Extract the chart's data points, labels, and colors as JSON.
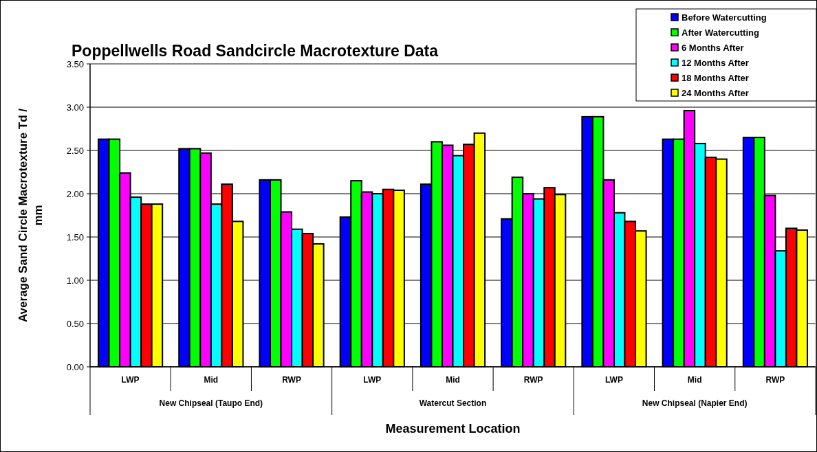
{
  "chart_data": {
    "type": "bar",
    "title": "Poppellwells Road Sandcircle Macrotexture Data",
    "xlabel": "Measurement Location",
    "ylabel": "Average Sand Circle Macrotexture Td / mm",
    "categories": [
      "LWP",
      "Mid",
      "RWP",
      "LWP",
      "Mid",
      "RWP",
      "LWP",
      "Mid",
      "RWP"
    ],
    "annotations": [
      "New Chipseal (Taupo End)",
      "Watercut Section",
      "New Chipseal (Napier End)"
    ],
    "series": [
      {
        "name": "Before Watercutting",
        "color": "#0000ff",
        "values": [
          2.63,
          2.52,
          2.16,
          1.73,
          2.11,
          1.71,
          2.89,
          2.63,
          2.65
        ]
      },
      {
        "name": "After Watercutting",
        "color": "#00ff00",
        "values": [
          2.63,
          2.52,
          2.16,
          2.15,
          2.6,
          2.19,
          2.89,
          2.63,
          2.65
        ]
      },
      {
        "name": "6 Months After",
        "color": "#ff00ff",
        "values": [
          2.24,
          2.47,
          1.79,
          2.02,
          2.56,
          2.0,
          2.16,
          2.96,
          1.98
        ]
      },
      {
        "name": "12 Months After",
        "color": "#00ffff",
        "values": [
          1.96,
          1.88,
          1.59,
          2.0,
          2.44,
          1.94,
          1.78,
          2.58,
          1.34
        ]
      },
      {
        "name": "18 Months After",
        "color": "#ff0000",
        "values": [
          1.88,
          2.11,
          1.54,
          2.05,
          2.57,
          2.07,
          1.68,
          2.42,
          1.6
        ]
      },
      {
        "name": "24 Months After",
        "color": "#ffff00",
        "values": [
          1.88,
          1.68,
          1.42,
          2.04,
          2.7,
          1.99,
          1.57,
          2.4,
          1.58
        ]
      }
    ],
    "ylim": [
      0,
      3.5
    ],
    "yticks": [
      {
        "value": 0,
        "label": "0.00"
      },
      {
        "value": 0.5,
        "label": "0.50"
      },
      {
        "value": 1,
        "label": "1.00"
      },
      {
        "value": 1.5,
        "label": "1.50"
      },
      {
        "value": 2,
        "label": "2.00"
      },
      {
        "value": 2.5,
        "label": "2.50"
      },
      {
        "value": 3,
        "label": "3.00"
      },
      {
        "value": 3.5,
        "label": "3.50"
      }
    ],
    "grid": "y",
    "legend": "top right"
  }
}
